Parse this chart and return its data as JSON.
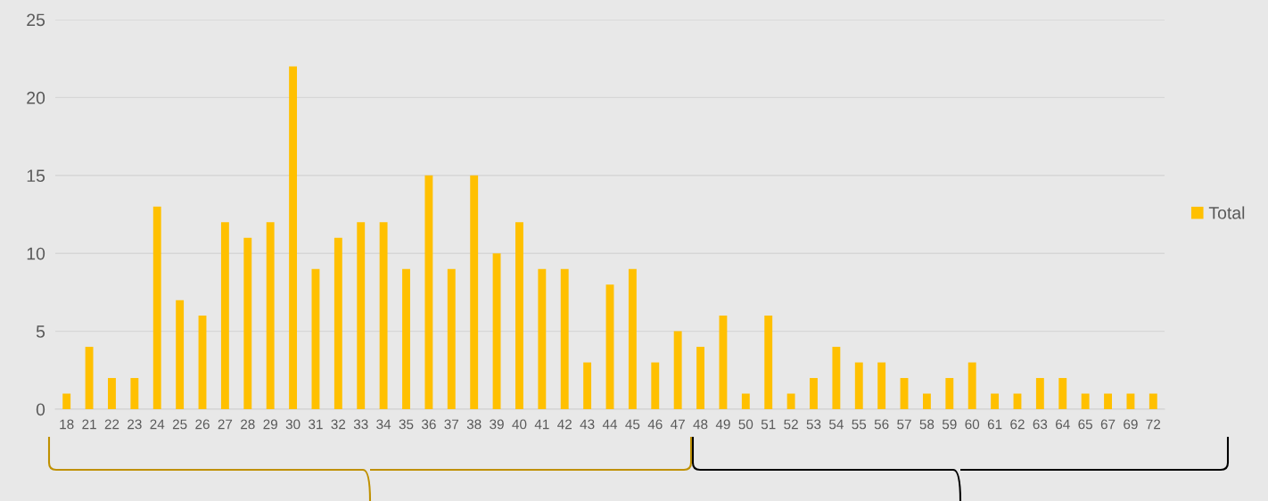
{
  "chart_data": {
    "type": "bar",
    "categories": [
      "18",
      "21",
      "22",
      "23",
      "24",
      "25",
      "26",
      "27",
      "28",
      "29",
      "30",
      "31",
      "32",
      "33",
      "34",
      "35",
      "36",
      "37",
      "38",
      "39",
      "40",
      "41",
      "42",
      "43",
      "44",
      "45",
      "46",
      "47",
      "48",
      "49",
      "50",
      "51",
      "52",
      "53",
      "54",
      "55",
      "56",
      "57",
      "58",
      "59",
      "60",
      "61",
      "62",
      "63",
      "64",
      "65",
      "67",
      "69",
      "72"
    ],
    "series": [
      {
        "name": "Total",
        "color": "#ffc000",
        "values": [
          1,
          4,
          2,
          2,
          13,
          7,
          6,
          12,
          11,
          12,
          22,
          9,
          11,
          12,
          12,
          9,
          15,
          9,
          15,
          10,
          12,
          9,
          9,
          3,
          8,
          9,
          3,
          5,
          4,
          6,
          1,
          6,
          1,
          2,
          4,
          3,
          3,
          2,
          1,
          2,
          3,
          1,
          1,
          2,
          2,
          1,
          1,
          1,
          1
        ]
      }
    ],
    "ylim": [
      0,
      25
    ],
    "yticks": [
      0,
      5,
      10,
      15,
      20,
      25
    ],
    "grid": "y",
    "legend": "right"
  }
}
